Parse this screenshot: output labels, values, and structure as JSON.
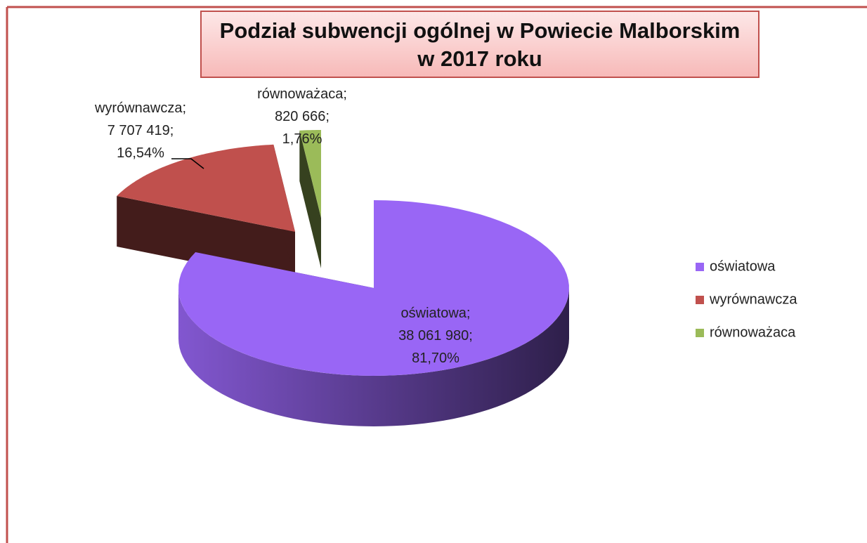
{
  "chart_data": {
    "type": "pie3d",
    "title": [
      "Podział subwencji ogólnej w Powiecie Malborskim",
      "w 2017 roku"
    ],
    "categories": [
      "oświatowa",
      "wyrównawcza",
      "równoważaca"
    ],
    "values": [
      38061980,
      7707419,
      820666
    ],
    "value_labels": [
      "38 061 980",
      "7 707 419",
      "820 666"
    ],
    "percentages": [
      81.7,
      16.54,
      1.76
    ],
    "percent_labels": [
      "81,70%",
      "16,54%",
      "1,76%"
    ],
    "label_separator": ";",
    "colors": [
      "#9966f5",
      "#c0504d",
      "#9bbb59"
    ],
    "legend": "right"
  }
}
